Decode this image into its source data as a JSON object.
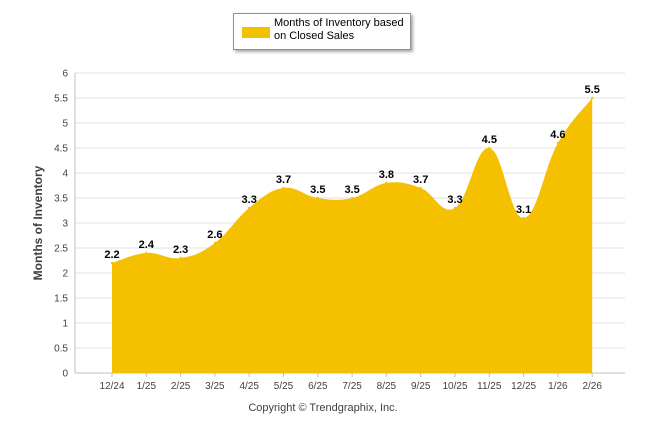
{
  "legend": {
    "label": "Months of Inventory based on Closed Sales"
  },
  "copyright": "Copyright © Trendgraphix, Inc.",
  "colors": {
    "area": "#F5C000",
    "grid": "#E0E0E0",
    "axis_text": "#404040"
  },
  "chart_data": {
    "type": "area",
    "title": "",
    "xlabel": "",
    "ylabel": "Months of Inventory",
    "categories": [
      "12/24",
      "1/25",
      "2/25",
      "3/25",
      "4/25",
      "5/25",
      "6/25",
      "7/25",
      "8/25",
      "9/25",
      "10/25",
      "11/25",
      "12/25",
      "1/26",
      "2/26"
    ],
    "series": [
      {
        "name": "Months of Inventory based on Closed Sales",
        "values": [
          2.2,
          2.4,
          2.3,
          2.6,
          3.3,
          3.7,
          3.5,
          3.5,
          3.8,
          3.7,
          3.3,
          4.5,
          3.1,
          4.6,
          5.5
        ]
      }
    ],
    "ylim": [
      0,
      6
    ],
    "yticks": [
      "0",
      "0.5",
      "1",
      "1.5",
      "2",
      "2.5",
      "3",
      "3.5",
      "4",
      "4.5",
      "5",
      "5.5",
      "6"
    ],
    "grid": true,
    "legend_position": "top-center",
    "smooth": true,
    "data_labels": true
  }
}
